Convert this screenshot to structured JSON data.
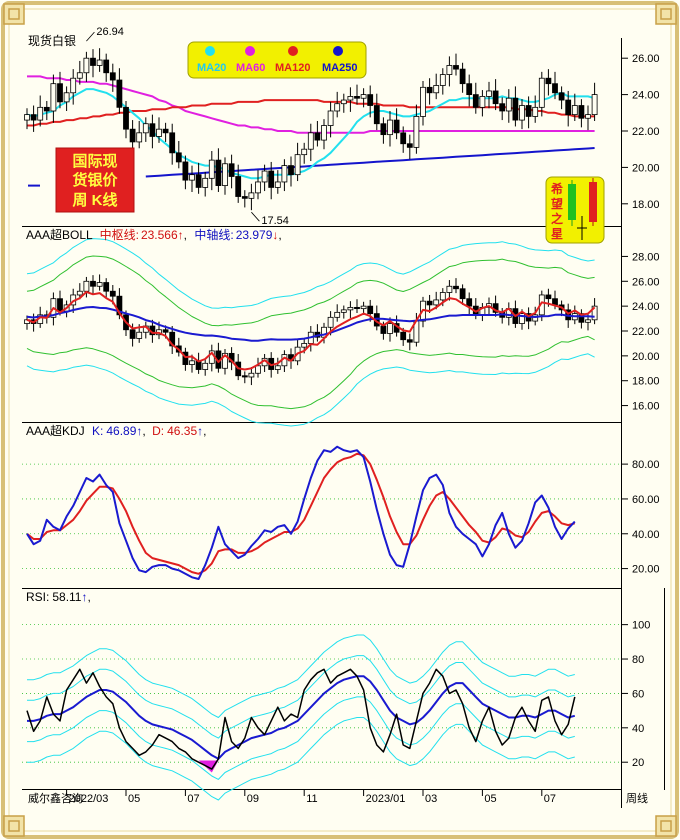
{
  "window_title": "现货白银",
  "footer": {
    "vendor": "威尔鑫咨询",
    "period": "周线"
  },
  "badge": {
    "line1": "国际现",
    "line2": "货银价",
    "line3": "周 K线"
  },
  "logo": {
    "line1": "希",
    "line2": "望",
    "line3": "之",
    "line4": "星"
  },
  "colors": {
    "ma20": "#22e0ee",
    "ma60": "#e020e0",
    "ma120": "#e02020",
    "ma250": "#1414cc",
    "kdj_k": "#1a1ad0",
    "kdj_d": "#e02020",
    "boll_mid": "#e02020",
    "boll_axis": "#1a1ad0",
    "rsi": "#000000",
    "rsi_avg": "#1a1ad0",
    "band": "#22e0ee",
    "badge_bg": "#e02020"
  },
  "x_axis": {
    "labels": [
      {
        "text": "2022/03",
        "index": 6
      },
      {
        "text": "05",
        "index": 15
      },
      {
        "text": "07",
        "index": 24
      },
      {
        "text": "09",
        "index": 33
      },
      {
        "text": "11",
        "index": 42
      },
      {
        "text": "2023/01",
        "index": 51
      },
      {
        "text": "03",
        "index": 60
      },
      {
        "text": "05",
        "index": 69
      },
      {
        "text": "07",
        "index": 78
      }
    ]
  },
  "chart_data": [
    {
      "type": "candlestick",
      "legend": [
        {
          "name": "MA20",
          "color": "#22e0ee"
        },
        {
          "name": "MA60",
          "color": "#e020e0"
        },
        {
          "name": "MA120",
          "color": "#e02020"
        },
        {
          "name": "MA250",
          "color": "#1414cc"
        }
      ],
      "ylim": [
        17.0,
        27.0
      ],
      "yticks": [
        18.0,
        20.0,
        22.0,
        24.0,
        26.0
      ],
      "ytick_labels": [
        "18.00",
        "20.00",
        "22.00",
        "24.00",
        "26.00"
      ],
      "annotations": [
        {
          "text": "26.94",
          "index": 9,
          "value": 26.94
        },
        {
          "text": "17.54",
          "index": 34,
          "value": 17.54
        }
      ],
      "close": [
        22.9,
        22.6,
        23.3,
        23.1,
        24.6,
        23.6,
        24.1,
        24.9,
        25.2,
        26.0,
        25.6,
        25.9,
        25.2,
        24.8,
        23.3,
        22.1,
        21.4,
        21.9,
        22.4,
        21.7,
        22.1,
        21.9,
        20.8,
        20.3,
        19.3,
        19.6,
        18.9,
        19.4,
        20.4,
        19.0,
        20.2,
        19.5,
        18.4,
        18.3,
        18.6,
        19.2,
        19.8,
        18.9,
        19.2,
        20.1,
        19.6,
        20.7,
        21.0,
        21.9,
        21.5,
        22.3,
        23.1,
        23.5,
        23.7,
        23.9,
        23.8,
        24.0,
        23.4,
        22.4,
        21.8,
        22.6,
        21.9,
        21.3,
        21.1,
        22.8,
        24.4,
        24.1,
        24.5,
        25.1,
        25.6,
        25.4,
        24.6,
        24.0,
        23.3,
        23.9,
        24.2,
        23.5,
        23.1,
        23.8,
        22.6,
        23.4,
        22.8,
        23.3,
        24.9,
        24.6,
        24.1,
        23.7,
        22.9,
        23.4,
        22.7,
        22.9,
        24.0
      ],
      "ma20": [
        22.9,
        22.8,
        22.9,
        23.0,
        23.1,
        23.4,
        23.6,
        23.9,
        24.1,
        24.3,
        24.3,
        24.2,
        24.1,
        23.9,
        23.6,
        23.3,
        23.0,
        22.7,
        22.3,
        22.0,
        21.6,
        21.3,
        21.0,
        20.7,
        20.5,
        20.3,
        20.2,
        20.1,
        20.1,
        20.0,
        19.9,
        19.7,
        19.6,
        19.5,
        19.4,
        19.4,
        19.5,
        19.6,
        19.6,
        19.6,
        19.6,
        19.7,
        19.8,
        20.0,
        20.3,
        20.5,
        20.8,
        21.2,
        21.6,
        22.0,
        22.5,
        22.8,
        23.0,
        23.1,
        23.1,
        23.0,
        22.9,
        22.8,
        22.8,
        22.9,
        23.0,
        23.1,
        23.3,
        23.5,
        23.7,
        23.7,
        23.8,
        23.8,
        23.8,
        23.8,
        23.8,
        23.8,
        23.9,
        23.8,
        23.8,
        23.7,
        23.6,
        23.6,
        23.7,
        23.8,
        24.0,
        24.1,
        23.9,
        23.9,
        23.9,
        23.9,
        23.8
      ],
      "ma60": [
        25.0,
        25.0,
        25.0,
        24.9,
        24.9,
        24.9,
        24.8,
        24.8,
        24.7,
        24.7,
        24.7,
        24.6,
        24.6,
        24.5,
        24.4,
        24.3,
        24.2,
        24.1,
        24.0,
        23.9,
        23.7,
        23.6,
        23.4,
        23.3,
        23.1,
        23.0,
        22.9,
        22.8,
        22.7,
        22.6,
        22.5,
        22.4,
        22.3,
        22.3,
        22.2,
        22.2,
        22.1,
        22.1,
        22.0,
        22.0,
        22.0,
        21.9,
        21.9,
        21.9,
        21.9,
        21.9,
        21.9,
        21.9,
        21.9,
        21.9,
        21.9,
        21.9,
        22.0,
        22.0,
        22.0,
        22.0,
        22.0,
        22.0,
        22.0,
        22.0,
        22.0,
        22.0,
        22.0,
        22.0,
        22.0,
        22.0,
        22.0,
        22.0,
        22.0,
        22.0,
        22.0,
        22.0,
        22.0,
        22.0,
        22.0,
        22.0,
        22.0,
        22.0,
        22.0,
        22.0,
        22.0,
        22.0,
        22.0,
        22.0,
        22.0,
        22.0,
        22.0
      ],
      "ma120": [
        22.3,
        22.3,
        22.4,
        22.4,
        22.5,
        22.5,
        22.6,
        22.6,
        22.7,
        22.7,
        22.8,
        22.8,
        22.9,
        22.9,
        23.0,
        23.0,
        23.1,
        23.1,
        23.1,
        23.2,
        23.2,
        23.2,
        23.3,
        23.3,
        23.3,
        23.4,
        23.4,
        23.4,
        23.5,
        23.5,
        23.5,
        23.5,
        23.6,
        23.6,
        23.6,
        23.6,
        23.7,
        23.7,
        23.7,
        23.7,
        23.7,
        23.7,
        23.7,
        23.7,
        23.7,
        23.6,
        23.6,
        23.6,
        23.6,
        23.6,
        23.5,
        23.5,
        23.5,
        23.5,
        23.4,
        23.4,
        23.4,
        23.4,
        23.3,
        23.3,
        23.3,
        23.3,
        23.3,
        23.3,
        23.3,
        23.3,
        23.3,
        23.3,
        23.3,
        23.3,
        23.3,
        23.3,
        23.3,
        23.3,
        23.2,
        23.2,
        23.2,
        23.1,
        23.1,
        23.0,
        23.0,
        22.9,
        22.9,
        22.8,
        22.8,
        22.8,
        22.8
      ],
      "ma250": [
        null,
        null,
        null,
        null,
        null,
        null,
        null,
        null,
        null,
        null,
        null,
        null,
        null,
        null,
        null,
        null,
        null,
        null,
        null,
        null,
        null,
        null,
        null,
        null,
        null,
        null,
        null,
        null,
        null,
        null,
        null,
        null,
        null,
        null,
        null,
        null,
        null,
        null,
        null,
        null,
        null,
        null,
        null,
        null,
        null,
        null,
        null,
        null,
        null,
        null,
        null,
        null,
        null,
        null,
        null,
        null,
        null,
        null,
        null,
        null,
        null,
        null,
        null,
        null,
        null,
        null,
        null,
        null,
        null,
        null,
        null,
        null,
        null,
        null,
        null,
        null,
        null,
        null,
        null,
        null,
        null,
        null,
        null,
        null,
        null,
        null,
        null
      ]
    },
    {
      "type": "line",
      "title": "AAA超BOLL",
      "labels": {
        "mid_label": "中枢线:",
        "mid_value": "23.566",
        "mid_arrow": "↑",
        "axis_label": "中轴线:",
        "axis_value": "23.979",
        "axis_arrow": "↓"
      },
      "ylim": [
        15.0,
        29.0
      ],
      "yticks": [
        16.0,
        18.0,
        20.0,
        22.0,
        24.0,
        26.0,
        28.0
      ],
      "ytick_labels": [
        "16.00",
        "18.00",
        "20.00",
        "22.00",
        "24.00",
        "26.00",
        "28.00"
      ]
    },
    {
      "type": "line",
      "title": "AAA超KDJ",
      "labels": {
        "k_label": "K:",
        "k_value": "46.89",
        "k_arrow": "↑",
        "d_label": "D:",
        "d_value": "46.35",
        "d_arrow": "↑"
      },
      "ylim": [
        10,
        95
      ],
      "yticks": [
        20,
        40,
        60,
        80
      ],
      "ytick_labels": [
        "20.00",
        "40.00",
        "60.00",
        "80.00"
      ],
      "series": [
        {
          "name": "K",
          "values": [
            40,
            34,
            36,
            48,
            44,
            42,
            50,
            56,
            64,
            72,
            70,
            74,
            68,
            64,
            46,
            36,
            26,
            19,
            18,
            21,
            22,
            22,
            20,
            19,
            17,
            15,
            14,
            22,
            32,
            44,
            34,
            30,
            26,
            28,
            33,
            37,
            42,
            41,
            44,
            45,
            40,
            47,
            60,
            72,
            82,
            88,
            87,
            90,
            88,
            87,
            88,
            84,
            70,
            54,
            40,
            28,
            22,
            21,
            34,
            50,
            65,
            72,
            74,
            68,
            52,
            44,
            40,
            37,
            34,
            27,
            34,
            45,
            52,
            40,
            32,
            36,
            46,
            58,
            62,
            55,
            44,
            37,
            43,
            47
          ]
        },
        {
          "name": "D",
          "values": [
            40,
            37,
            37,
            41,
            42,
            42,
            45,
            48,
            53,
            59,
            63,
            67,
            67,
            66,
            60,
            53,
            44,
            36,
            29,
            26,
            25,
            24,
            23,
            22,
            20,
            18,
            17,
            19,
            23,
            30,
            31,
            31,
            29,
            29,
            30,
            32,
            35,
            37,
            39,
            41,
            41,
            43,
            48,
            56,
            64,
            72,
            77,
            81,
            83,
            84,
            86,
            85,
            80,
            71,
            61,
            50,
            41,
            34,
            34,
            39,
            48,
            56,
            62,
            64,
            60,
            55,
            50,
            45,
            41,
            36,
            35,
            38,
            43,
            42,
            39,
            38,
            41,
            47,
            52,
            53,
            50,
            46,
            45,
            46
          ]
        }
      ]
    },
    {
      "type": "line",
      "title": "RSI",
      "labels": {
        "rsi_label": "RSI:",
        "rsi_value": "58.11",
        "rsi_arrow": "↑"
      },
      "ylim": [
        5,
        112
      ],
      "yticks": [
        20,
        40,
        60,
        80,
        100
      ],
      "ytick_labels": [
        "20",
        "40",
        "60",
        "80",
        "100"
      ],
      "series": [
        {
          "name": "RSI",
          "values": [
            50,
            38,
            44,
            58,
            48,
            44,
            62,
            68,
            74,
            66,
            72,
            64,
            58,
            54,
            40,
            32,
            28,
            24,
            26,
            30,
            36,
            34,
            32,
            28,
            26,
            22,
            20,
            18,
            16,
            22,
            46,
            32,
            28,
            34,
            46,
            40,
            36,
            44,
            52,
            44,
            48,
            46,
            62,
            68,
            72,
            74,
            66,
            70,
            72,
            74,
            70,
            62,
            40,
            30,
            26,
            36,
            48,
            30,
            28,
            44,
            60,
            66,
            74,
            70,
            60,
            62,
            54,
            40,
            32,
            44,
            52,
            38,
            30,
            34,
            46,
            52,
            44,
            38,
            56,
            58,
            44,
            36,
            42,
            58
          ]
        },
        {
          "name": "RSI-avg",
          "values": [
            44,
            44,
            45,
            47,
            48,
            48,
            50,
            52,
            55,
            58,
            60,
            62,
            62,
            61,
            58,
            55,
            51,
            47,
            44,
            42,
            41,
            40,
            39,
            37,
            35,
            33,
            30,
            27,
            24,
            22,
            26,
            28,
            30,
            32,
            34,
            35,
            36,
            37,
            39,
            40,
            42,
            44,
            48,
            52,
            56,
            60,
            63,
            66,
            68,
            69,
            70,
            70,
            67,
            62,
            56,
            50,
            46,
            44,
            42,
            43,
            46,
            50,
            55,
            60,
            64,
            66,
            66,
            62,
            58,
            54,
            52,
            50,
            48,
            46,
            46,
            47,
            47,
            46,
            48,
            50,
            50,
            48,
            46,
            47
          ]
        }
      ]
    }
  ]
}
